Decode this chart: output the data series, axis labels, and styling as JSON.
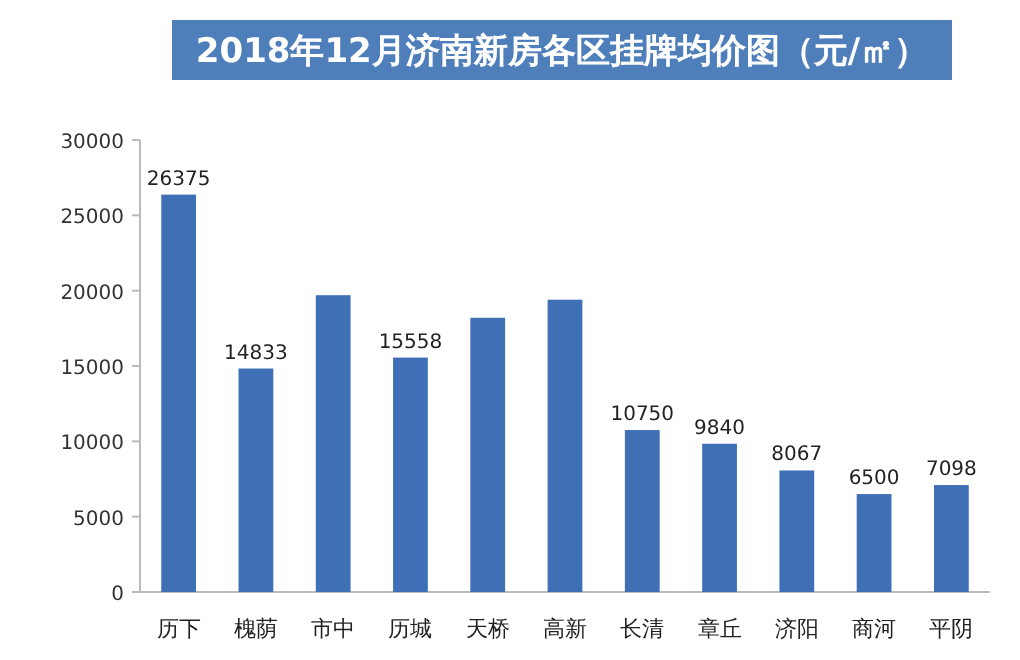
{
  "chart_data": {
    "type": "bar",
    "title": "2018年12月济南新房各区挂牌均价图（元/㎡）",
    "categories": [
      "历下",
      "槐荫",
      "市中",
      "历城",
      "天桥",
      "高新",
      "长清",
      "章丘",
      "济阳",
      "商河",
      "平阴"
    ],
    "values": [
      26375,
      14833,
      19700,
      15558,
      18200,
      19400,
      10750,
      9840,
      8067,
      6500,
      7098
    ],
    "value_labels": [
      "26375",
      "14833",
      null,
      "15558",
      null,
      null,
      "10750",
      "9840",
      "8067",
      "6500",
      "7098"
    ],
    "color": "#3f6fb5",
    "ylim": [
      0,
      30000
    ],
    "yticks": [
      0,
      5000,
      10000,
      15000,
      20000,
      25000,
      30000
    ],
    "grid": false
  }
}
